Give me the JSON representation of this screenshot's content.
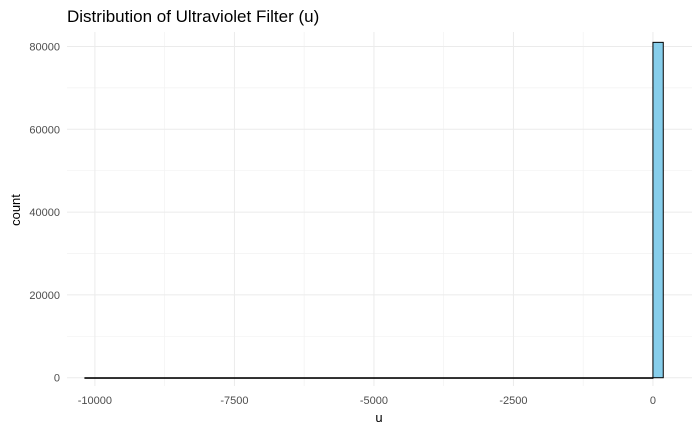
{
  "chart_data": {
    "type": "bar",
    "title": "Distribution of Ultraviolet Filter (u)",
    "xlabel": "u",
    "ylabel": "count",
    "xlim": [
      -10500,
      700
    ],
    "ylim": [
      -2000,
      83500
    ],
    "x_ticks": [
      -10000,
      -7500,
      -5000,
      -2500,
      0
    ],
    "x_tick_labels": [
      "-10000",
      "-7500",
      "-5000",
      "-2500",
      "0"
    ],
    "y_ticks": [
      0,
      20000,
      40000,
      60000,
      80000
    ],
    "y_tick_labels": [
      "0",
      "20000",
      "40000",
      "60000",
      "80000"
    ],
    "bins": [
      {
        "x0": -10179,
        "x1": 0,
        "count": 0
      },
      {
        "x0": 0,
        "x1": 185,
        "count": 81000
      }
    ],
    "bar_color": "#87CEEB",
    "bar_outline": "#000000",
    "grid": true,
    "legend": "none"
  }
}
